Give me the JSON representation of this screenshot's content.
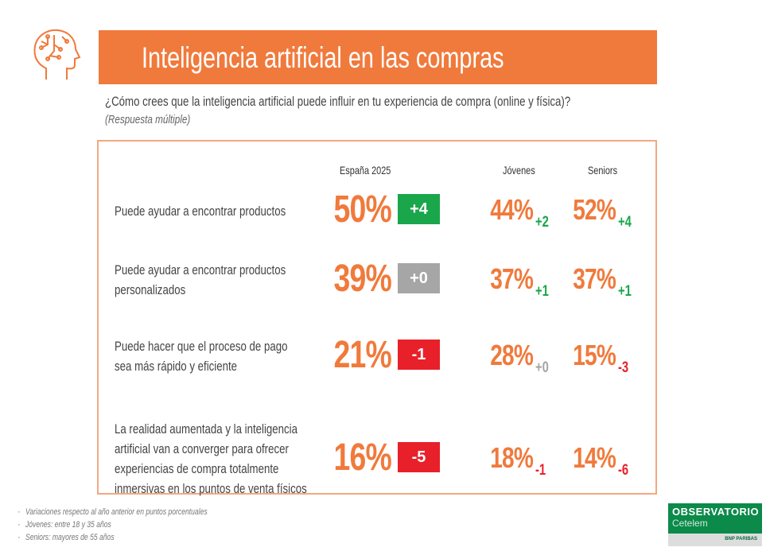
{
  "header": {
    "title": "Inteligencia artificial en las compras",
    "icon": "ai-head-icon"
  },
  "question": "¿Cómo crees que la inteligencia artificial puede influir en tu experiencia de compra (online y física)?",
  "question_note": "(Respuesta múltiple)",
  "colors": {
    "accent": "#f07a3c",
    "positive": "#1aa64a",
    "neutral": "#a6a6a6",
    "negative": "#e8202a"
  },
  "chart_data": {
    "type": "table",
    "columns": [
      "España 2025",
      "Jóvenes",
      "Seniors"
    ],
    "rows": [
      {
        "label_lines": [
          "Puede ayudar a encontrar productos"
        ],
        "espana": "50%",
        "espana_delta": "+4",
        "espana_status": "positive",
        "jovenes": "44%",
        "jovenes_delta": "+2",
        "jovenes_status": "positive",
        "seniors": "52%",
        "seniors_delta": "+4",
        "seniors_status": "positive"
      },
      {
        "label_lines": [
          "Puede ayudar a encontrar productos",
          "personalizados"
        ],
        "espana": "39%",
        "espana_delta": "+0",
        "espana_status": "neutral",
        "jovenes": "37%",
        "jovenes_delta": "+1",
        "jovenes_status": "positive",
        "seniors": "37%",
        "seniors_delta": "+1",
        "seniors_status": "positive"
      },
      {
        "label_lines": [
          "Puede hacer que el proceso de pago",
          "sea más rápido y eficiente"
        ],
        "espana": "21%",
        "espana_delta": "-1",
        "espana_status": "negative",
        "jovenes": "28%",
        "jovenes_delta": "+0",
        "jovenes_status": "neutral",
        "seniors": "15%",
        "seniors_delta": "-3",
        "seniors_status": "negative"
      },
      {
        "label_lines": [
          "La realidad aumentada y la inteligencia",
          "artificial van a converger para ofrecer",
          "experiencias de compra totalmente",
          "inmersivas en los puntos de venta físicos"
        ],
        "espana": "16%",
        "espana_delta": "-5",
        "espana_status": "negative",
        "jovenes": "18%",
        "jovenes_delta": "-1",
        "jovenes_status": "negative",
        "seniors": "14%",
        "seniors_delta": "-6",
        "seniors_status": "negative"
      }
    ]
  },
  "footnotes": [
    "Variaciones respecto al año anterior en puntos porcentuales",
    "Jóvenes: entre 18 y 35 años",
    "Seniors: mayores de 55 años"
  ],
  "logo": {
    "line1": "OBSERVATORIO",
    "line2": "Cetelem",
    "sub": "BNP PARIBAS"
  }
}
